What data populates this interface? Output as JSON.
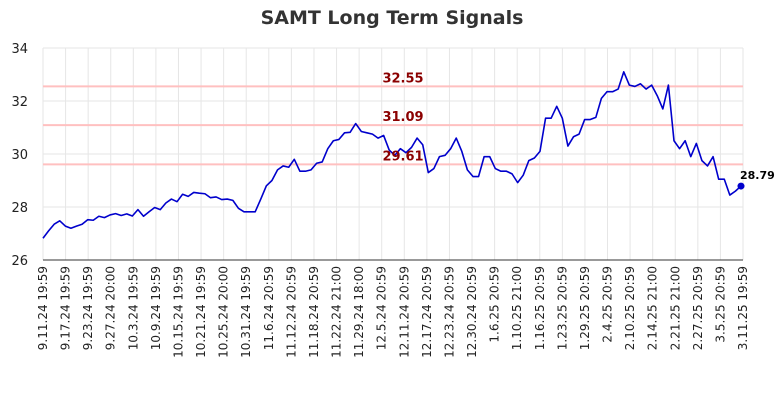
{
  "chart_data": {
    "type": "line",
    "title": "SAMT Long Term Signals",
    "xlabel": "",
    "ylabel": "",
    "ylim": [
      26,
      34
    ],
    "y_ticks": [
      26,
      28,
      30,
      32,
      34
    ],
    "grid": true,
    "x_tick_labels": [
      "9.11.24 19:59",
      "9.17.24 19:59",
      "9.23.24 19:59",
      "9.27.24 20:00",
      "10.3.24 19:59",
      "10.9.24 19:59",
      "10.15.24 19:59",
      "10.21.24 19:59",
      "10.25.24 20:00",
      "10.31.24 19:59",
      "11.6.24 20:59",
      "11.12.24 20:59",
      "11.18.24 20:59",
      "11.22.24 21:00",
      "11.29.24 18:00",
      "12.5.24 20:59",
      "12.11.24 20:59",
      "12.17.24 20:59",
      "12.23.24 20:59",
      "12.30.24 20:59",
      "1.6.25 20:59",
      "1.10.25 21:00",
      "1.16.25 20:59",
      "1.23.25 20:59",
      "1.29.25 20:59",
      "2.4.25 20:59",
      "2.10.25 20:59",
      "2.14.25 21:00",
      "2.21.25 21:00",
      "2.27.25 20:59",
      "3.5.25 20:59",
      "3.11.25 19:59"
    ],
    "horizontal_lines": [
      {
        "value": 32.55,
        "label": "32.55",
        "color": "#ffc0c0"
      },
      {
        "value": 31.09,
        "label": "31.09",
        "color": "#ffc0c0"
      },
      {
        "value": 29.61,
        "label": "29.61",
        "color": "#ffc0c0"
      }
    ],
    "series": [
      {
        "color": "#0000cc",
        "values": [
          26.82,
          27.1,
          27.35,
          27.48,
          27.28,
          27.2,
          27.28,
          27.35,
          27.52,
          27.5,
          27.65,
          27.6,
          27.7,
          27.75,
          27.68,
          27.74,
          27.66,
          27.9,
          27.65,
          27.82,
          27.98,
          27.9,
          28.15,
          28.3,
          28.2,
          28.48,
          28.4,
          28.55,
          28.52,
          28.5,
          28.35,
          28.38,
          28.28,
          28.3,
          28.25,
          27.95,
          27.82,
          27.82,
          27.82,
          28.3,
          28.8,
          29.0,
          29.4,
          29.55,
          29.5,
          29.8,
          29.35,
          29.35,
          29.4,
          29.65,
          29.7,
          30.2,
          30.5,
          30.55,
          30.8,
          30.82,
          31.15,
          30.85,
          30.8,
          30.75,
          30.6,
          30.7,
          30.15,
          29.95,
          30.2,
          30.05,
          30.25,
          30.6,
          30.35,
          29.3,
          29.45,
          29.9,
          29.95,
          30.2,
          30.6,
          30.1,
          29.4,
          29.15,
          29.15,
          29.9,
          29.9,
          29.45,
          29.35,
          29.35,
          29.25,
          28.92,
          29.2,
          29.75,
          29.85,
          30.1,
          31.35,
          31.35,
          31.8,
          31.35,
          30.3,
          30.65,
          30.75,
          31.3,
          31.3,
          31.38,
          32.1,
          32.35,
          32.35,
          32.45,
          33.1,
          32.6,
          32.55,
          32.65,
          32.45,
          32.6,
          32.2,
          31.7,
          32.6,
          30.5,
          30.2,
          30.5,
          29.9,
          30.4,
          29.75,
          29.55,
          29.9,
          29.05,
          29.05,
          28.45,
          28.6,
          28.79
        ]
      }
    ],
    "last_value_label": "28.79"
  }
}
